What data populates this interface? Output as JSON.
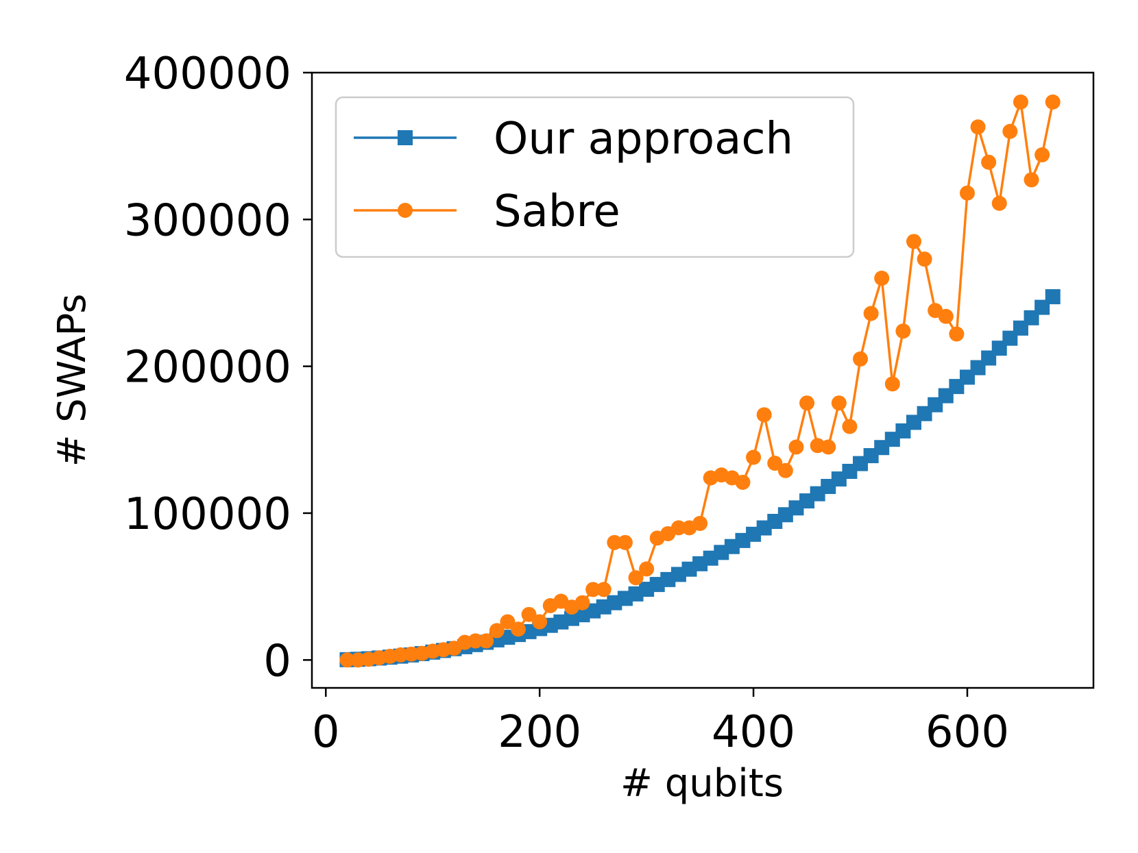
{
  "chart_data": {
    "type": "line",
    "xlabel": "# qubits",
    "ylabel": "# SWAPs",
    "xlim": [
      -13,
      718
    ],
    "ylim": [
      -19000,
      400000
    ],
    "xticks": [
      0,
      200,
      400,
      600
    ],
    "xtick_labels": [
      "0",
      "200",
      "400",
      "600"
    ],
    "yticks": [
      0,
      100000,
      200000,
      300000,
      400000
    ],
    "ytick_labels": [
      "0",
      "100000",
      "200000",
      "300000",
      "400000"
    ],
    "grid": false,
    "legend_position": "top-left",
    "series": [
      {
        "name": "Our approach",
        "color": "#1f77b4",
        "marker": "square",
        "x_start": 20,
        "x_step": 10,
        "x_end": 680,
        "coefficient": 0.535
      },
      {
        "name": "Sabre",
        "color": "#ff7f0e",
        "marker": "circle",
        "x": [
          20,
          30,
          40,
          50,
          60,
          70,
          80,
          90,
          100,
          110,
          120,
          130,
          140,
          150,
          160,
          170,
          180,
          190,
          200,
          210,
          220,
          230,
          240,
          250,
          260,
          270,
          280,
          290,
          300,
          310,
          320,
          330,
          340,
          350,
          360,
          370,
          380,
          390,
          400,
          410,
          420,
          430,
          440,
          450,
          460,
          470,
          480,
          490,
          500,
          510,
          520,
          530,
          540,
          550,
          560,
          570,
          580,
          590,
          600,
          610,
          620,
          630,
          640,
          650,
          660,
          670,
          680
        ],
        "y": [
          0,
          0,
          500,
          1500,
          2500,
          3500,
          4000,
          4500,
          6000,
          7000,
          8000,
          12000,
          13000,
          13000,
          20000,
          26000,
          21000,
          31000,
          26000,
          37000,
          40000,
          36000,
          39000,
          48000,
          48000,
          80000,
          80000,
          56000,
          62000,
          83000,
          86000,
          90000,
          90000,
          93000,
          124000,
          126000,
          124000,
          121000,
          138000,
          167000,
          134000,
          129000,
          145000,
          175000,
          146000,
          145000,
          175000,
          159000,
          205000,
          236000,
          260000,
          188000,
          224000,
          285000,
          273000,
          238000,
          234000,
          222000,
          318000,
          363000,
          339000,
          311000,
          360000,
          380000,
          327000,
          344000,
          380000
        ]
      }
    ]
  }
}
